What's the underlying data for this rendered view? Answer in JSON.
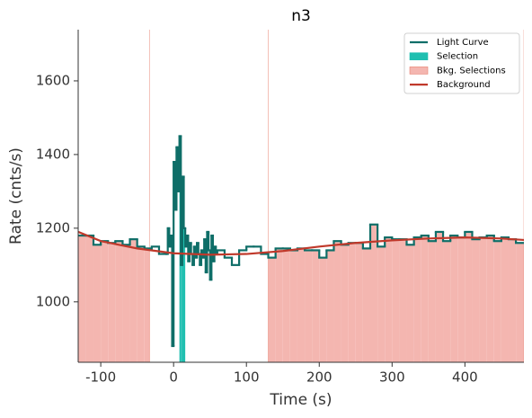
{
  "chart_data": {
    "type": "lightcurve",
    "title": "n3",
    "xlabel": "Time (s)",
    "ylabel": "Rate (cnts/s)",
    "xlim": [
      -131,
      481
    ],
    "ylim": [
      836,
      1739
    ],
    "xticks": [
      -100,
      0,
      100,
      200,
      300,
      400
    ],
    "yticks": [
      1000,
      1200,
      1400,
      1600
    ],
    "legend_position": "upper right",
    "light_curve": {
      "name": "Light Curve",
      "color": "#0f6e68",
      "bins": [
        -131,
        -120,
        -110,
        -100,
        -90,
        -80,
        -70,
        -60,
        -50,
        -40,
        -30,
        -20,
        -10,
        -8,
        -6,
        -4,
        -2,
        0,
        2,
        4,
        6,
        8,
        10,
        12,
        14,
        16,
        18,
        20,
        22,
        24,
        26,
        28,
        30,
        32,
        34,
        36,
        38,
        40,
        42,
        44,
        46,
        48,
        50,
        52,
        54,
        56,
        58,
        60,
        70,
        80,
        90,
        100,
        110,
        120,
        130,
        140,
        150,
        160,
        170,
        180,
        190,
        200,
        210,
        220,
        230,
        240,
        250,
        260,
        270,
        280,
        290,
        300,
        310,
        320,
        330,
        340,
        350,
        360,
        370,
        380,
        390,
        400,
        410,
        420,
        430,
        440,
        450,
        460,
        470,
        481
      ],
      "values": [
        1180,
        1180,
        1155,
        1165,
        1160,
        1165,
        1155,
        1170,
        1150,
        1145,
        1150,
        1130,
        1130,
        1200,
        1150,
        1180,
        880,
        1380,
        1250,
        1420,
        1300,
        1450,
        1100,
        1340,
        1200,
        1150,
        1180,
        1110,
        1160,
        1130,
        1100,
        1150,
        1120,
        1160,
        1130,
        1100,
        1140,
        1120,
        1170,
        1080,
        1190,
        1140,
        1060,
        1180,
        1110,
        1150,
        1130,
        1140,
        1120,
        1100,
        1140,
        1150,
        1150,
        1130,
        1120,
        1145,
        1145,
        1140,
        1145,
        1140,
        1140,
        1120,
        1140,
        1165,
        1155,
        1160,
        1160,
        1145,
        1210,
        1150,
        1175,
        1170,
        1170,
        1155,
        1175,
        1180,
        1165,
        1190,
        1165,
        1180,
        1175,
        1190,
        1170,
        1175,
        1180,
        1165,
        1175,
        1170,
        1160
      ]
    },
    "selection": {
      "name": "Selection",
      "color": "#1fbfb0",
      "range": [
        8,
        16
      ]
    },
    "bkg_selections": {
      "name": "Bkg. Selections",
      "color": "#f4b6b0",
      "edgecolor": "#e8806f",
      "ranges": [
        [
          -131,
          -33
        ],
        [
          130,
          481
        ]
      ]
    },
    "background": {
      "name": "Background",
      "color": "#c0392b",
      "x": [
        -131,
        -100,
        -50,
        0,
        50,
        100,
        150,
        200,
        250,
        300,
        350,
        400,
        450,
        481
      ],
      "values": [
        1190,
        1165,
        1145,
        1132,
        1128,
        1130,
        1138,
        1150,
        1160,
        1167,
        1172,
        1175,
        1172,
        1168
      ]
    }
  }
}
